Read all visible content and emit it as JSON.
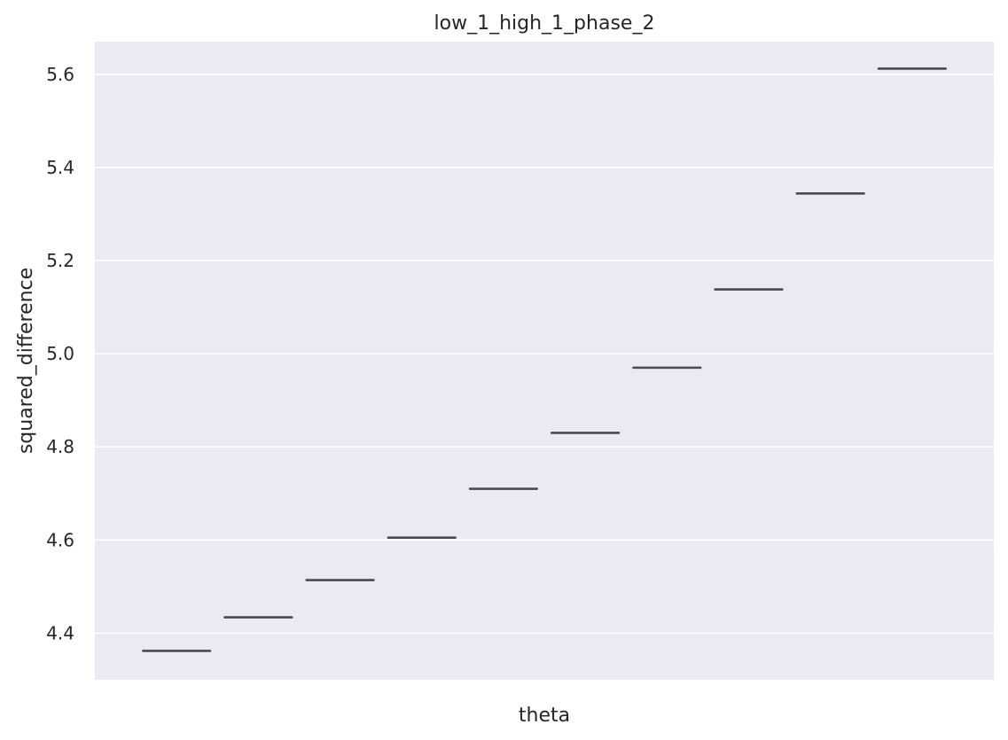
{
  "chart_data": {
    "type": "box",
    "title": "low_1_high_1_phase_2",
    "xlabel": "theta",
    "ylabel": "squared_difference",
    "ylim": [
      4.3,
      5.67
    ],
    "yticks": [
      "4.4",
      "4.6",
      "4.8",
      "5.0",
      "5.2",
      "5.4",
      "5.6"
    ],
    "ytick_values": [
      4.4,
      4.6,
      4.8,
      5.0,
      5.2,
      5.4,
      5.6
    ],
    "grid": true,
    "categories_visible": false,
    "series": [
      {
        "name": "squared_difference",
        "values": [
          4.362,
          4.434,
          4.514,
          4.605,
          4.71,
          4.83,
          4.97,
          5.138,
          5.344,
          5.612
        ]
      }
    ],
    "colors": {
      "plot_background": "#eaeaf2",
      "grid": "#ffffff",
      "box_line": "#4a4a4a",
      "text": "#262626"
    }
  }
}
